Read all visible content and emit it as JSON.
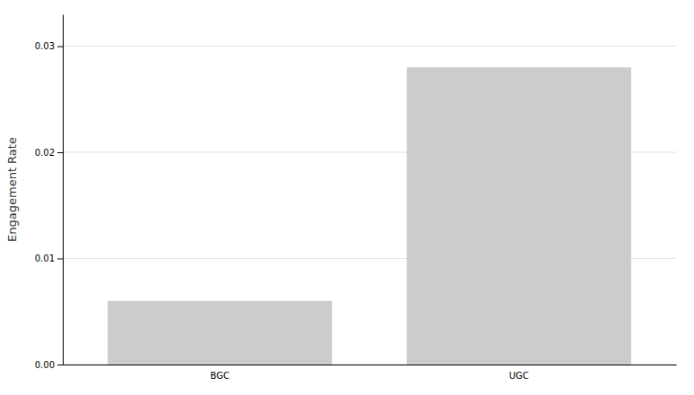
{
  "chart_data": {
    "type": "bar",
    "categories": [
      "BGC",
      "UGC"
    ],
    "values": [
      0.006,
      0.028
    ],
    "color": "#cccccc",
    "ylabel": "Engagement Rate",
    "ylim": [
      0,
      0.033
    ],
    "yticks": [
      {
        "value": 0,
        "label": "0.00"
      },
      0.01,
      0.02,
      0.03
    ],
    "grid": true
  }
}
